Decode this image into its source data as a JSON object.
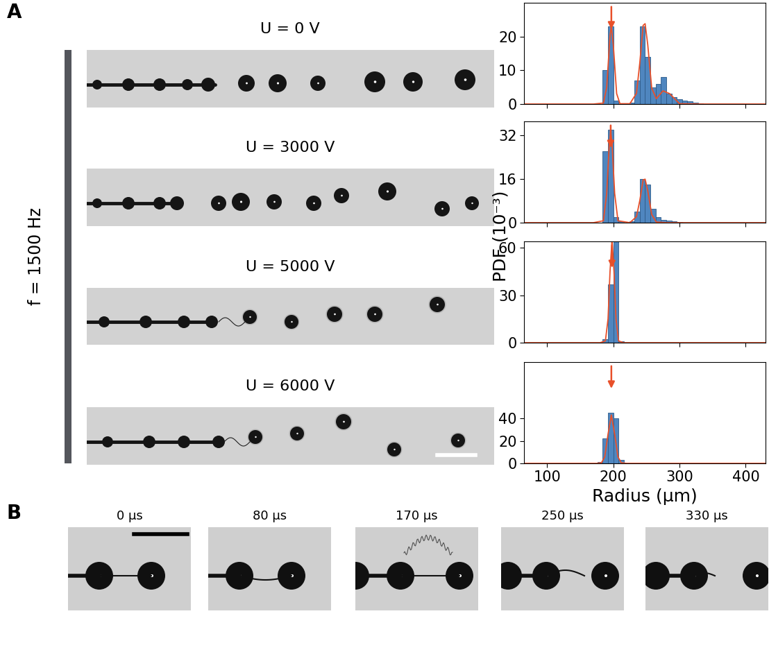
{
  "panel_labels": [
    "A",
    "B"
  ],
  "panel_A": {
    "frequency_label": "f = 1500 Hz",
    "voltage_labels": [
      "U = 0 V",
      "U = 3000 V",
      "U = 5000 V",
      "U = 6000 V"
    ],
    "xlabel": "Radius (µm)",
    "ylabel": "PDF (10⁻³)"
  },
  "chart_data": [
    {
      "type": "histogram",
      "color": "#4f86bf",
      "xlim": [
        65,
        430
      ],
      "xticks": [
        100,
        200,
        300,
        400
      ],
      "ylim": [
        0,
        30
      ],
      "yticks": [
        0,
        10,
        20
      ],
      "tick_labels": "y",
      "bins": [
        168,
        176,
        184,
        192,
        200,
        208,
        216,
        224,
        232,
        240,
        248,
        256,
        264,
        272,
        280,
        288,
        296,
        304,
        312,
        320,
        328,
        336
      ],
      "counts": [
        0,
        0,
        10,
        23,
        1,
        0,
        0.3,
        0.5,
        7,
        23,
        14,
        5,
        6,
        8,
        3,
        2,
        1.5,
        1,
        0.8,
        0.5,
        0.3
      ],
      "fit": {
        "color": "#e8502a",
        "x": [
          60,
          170,
          185,
          190,
          195,
          197,
          200,
          205,
          210,
          225,
          235,
          240,
          245,
          248,
          252,
          258,
          265,
          275,
          285,
          300,
          330,
          450
        ],
        "values": [
          0,
          0,
          0.3,
          5.0,
          20.3,
          23,
          17.4,
          3.1,
          0.1,
          0.1,
          3.2,
          12.2,
          23.3,
          23.8,
          17.6,
          4.7,
          1.6,
          3.9,
          3.1,
          0.1,
          0,
          0
        ]
      },
      "arrow_x": 197
    },
    {
      "type": "histogram",
      "color": "#4f86bf",
      "xlim": [
        65,
        430
      ],
      "xticks": [
        100,
        200,
        300,
        400
      ],
      "ylim": [
        0,
        37
      ],
      "yticks": [
        0,
        16,
        32
      ],
      "tick_labels": "y",
      "bins": [
        168,
        176,
        184,
        192,
        200,
        208,
        216,
        224,
        232,
        240,
        248,
        256,
        264,
        272,
        280,
        288,
        296,
        304,
        312,
        320,
        328,
        336
      ],
      "counts": [
        0,
        0,
        26,
        34,
        2,
        0.5,
        0,
        0.5,
        4,
        16,
        14,
        5,
        2,
        1,
        0.7,
        0.5,
        0.3,
        0,
        0,
        0,
        0
      ],
      "fit": {
        "color": "#e8502a",
        "x": [
          60,
          170,
          185,
          190,
          194,
          196,
          198,
          202,
          207,
          225,
          235,
          240,
          245,
          248,
          252,
          258,
          265,
          280,
          450
        ],
        "values": [
          0,
          0,
          0.7,
          10.7,
          29.1,
          33,
          29.1,
          10.7,
          0.7,
          0,
          2.2,
          8.1,
          15.6,
          15.9,
          11.7,
          3.0,
          0.2,
          0,
          0
        ]
      },
      "arrow_x": 196
    },
    {
      "type": "histogram",
      "color": "#4f86bf",
      "xlim": [
        65,
        430
      ],
      "xticks": [
        100,
        200,
        300,
        400
      ],
      "ylim": [
        0,
        64
      ],
      "yticks": [
        0,
        30,
        60
      ],
      "tick_labels": "y",
      "bins": [
        168,
        176,
        184,
        192,
        200,
        208,
        216,
        224,
        232,
        240,
        248,
        256,
        264,
        272,
        280,
        288,
        296,
        304,
        312,
        320,
        328,
        336
      ],
      "counts": [
        0,
        0,
        2,
        37,
        64,
        1,
        0,
        0,
        0,
        0,
        0,
        0,
        0,
        0,
        0,
        0,
        0,
        0,
        0,
        0,
        0
      ],
      "fit": {
        "color": "#e8502a",
        "x": [
          60,
          180,
          188,
          192,
          195,
          198,
          201,
          204,
          208,
          215,
          450
        ],
        "values": [
          0,
          0,
          1.1,
          15,
          45,
          65,
          45,
          15,
          1.1,
          0,
          0
        ]
      },
      "arrow_x": 198
    },
    {
      "type": "histogram",
      "color": "#4f86bf",
      "xlim": [
        65,
        430
      ],
      "xticks": [
        100,
        200,
        300,
        400
      ],
      "ylim": [
        0,
        90
      ],
      "yticks": [
        0,
        20,
        40
      ],
      "bins": [
        168,
        176,
        184,
        192,
        200,
        208,
        216,
        224,
        232,
        240,
        248,
        256,
        264,
        272,
        280,
        288,
        296,
        304,
        312,
        320,
        328,
        336
      ],
      "counts": [
        0,
        1,
        22,
        45,
        40,
        3,
        0,
        0,
        0,
        0,
        0,
        0,
        0,
        0,
        0,
        0,
        0,
        0,
        0,
        0,
        0
      ],
      "fit": {
        "color": "#e8502a",
        "x": [
          60,
          175,
          182,
          187,
          192,
          197,
          202,
          207,
          212,
          220,
          450
        ],
        "values": [
          0,
          0,
          0.5,
          5.8,
          26,
          43,
          26,
          5.8,
          0.5,
          0,
          0
        ]
      },
      "arrow_x": 197
    }
  ],
  "panel_B": {
    "times": [
      "0 µs",
      "80 µs",
      "170 µs",
      "250 µs",
      "330 µs"
    ]
  }
}
